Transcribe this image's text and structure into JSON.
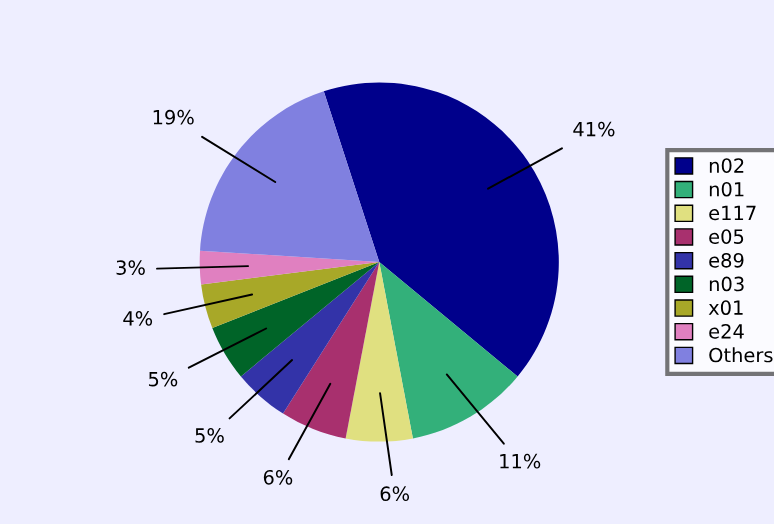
{
  "chart_data": {
    "type": "pie",
    "categories": [
      "n02",
      "n01",
      "e117",
      "e05",
      "e89",
      "n03",
      "x01",
      "e24",
      "Others"
    ],
    "values": [
      41,
      11,
      6,
      6,
      5,
      5,
      4,
      3,
      19
    ],
    "value_labels": [
      "41%",
      "11%",
      "6%",
      "6%",
      "5%",
      "5%",
      "4%",
      "3%",
      "19%"
    ],
    "colors": [
      "#00008b",
      "#33b07a",
      "#e0e080",
      "#a8306e",
      "#3333a8",
      "#006428",
      "#a8a828",
      "#e080c0",
      "#8080e0"
    ],
    "legend": "right"
  }
}
